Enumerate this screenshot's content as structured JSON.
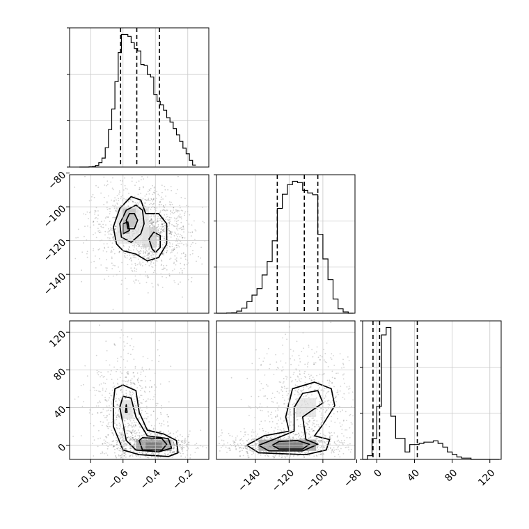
{
  "chart_data": {
    "type": "corner",
    "parameters": [
      {
        "xlim": [
          -0.93,
          -0.07
        ],
        "ticks": [
          -0.8,
          -0.6,
          -0.4,
          -0.2
        ],
        "tick_labels": [
          "−0.8",
          "−0.6",
          "−0.4",
          "−0.2"
        ]
      },
      {
        "xlim": [
          -163,
          -81
        ],
        "ticks": [
          -140,
          -120,
          -100,
          -80
        ],
        "tick_labels": [
          "−140",
          "−120",
          "−100",
          "−80"
        ]
      },
      {
        "xlim": [
          -15,
          132
        ],
        "ticks": [
          0,
          40,
          80,
          120
        ],
        "tick_labels": [
          "0",
          "40",
          "80",
          "120"
        ]
      }
    ],
    "row_tick_labels": {
      "1": {
        "ticks": [
          -80,
          -100,
          -120,
          -140
        ],
        "labels": [
          "−80",
          "−100",
          "−120",
          "−140"
        ]
      },
      "2": {
        "ticks": [
          120,
          80,
          40,
          0
        ],
        "labels": [
          "120",
          "80",
          "40",
          "0"
        ]
      }
    },
    "histograms": [
      {
        "bin_edges": [
          -0.87,
          -0.85,
          -0.83,
          -0.81,
          -0.79,
          -0.77,
          -0.75,
          -0.73,
          -0.71,
          -0.69,
          -0.67,
          -0.65,
          -0.63,
          -0.61,
          -0.59,
          -0.57,
          -0.55,
          -0.53,
          -0.51,
          -0.49,
          -0.47,
          -0.45,
          -0.43,
          -0.41,
          -0.39,
          -0.37,
          -0.35,
          -0.33,
          -0.31,
          -0.29,
          -0.27,
          -0.25,
          -0.23,
          -0.21,
          -0.19,
          -0.17,
          -0.15
        ],
        "counts": [
          0,
          0,
          0,
          1,
          2,
          7,
          18,
          37,
          80,
          155,
          240,
          353,
          473,
          548,
          548,
          540,
          514,
          490,
          480,
          424,
          420,
          383,
          372,
          300,
          272,
          257,
          235,
          204,
          186,
          159,
          133,
          106,
          78,
          55,
          28,
          8
        ],
        "quantiles": [
          -0.615,
          -0.515,
          -0.375
        ]
      },
      {
        "bin_edges": [
          -163,
          -160,
          -157,
          -154,
          -151,
          -148,
          -145,
          -142,
          -139,
          -136,
          -133,
          -130,
          -127,
          -124,
          -121,
          -118,
          -115,
          -112,
          -109,
          -106,
          -103,
          -100,
          -97,
          -94,
          -91,
          -88,
          -85,
          -82
        ],
        "counts": [
          0,
          0,
          1,
          2,
          8,
          20,
          45,
          70,
          95,
          148,
          200,
          280,
          405,
          460,
          497,
          510,
          505,
          475,
          465,
          458,
          305,
          210,
          130,
          55,
          17,
          5,
          0
        ],
        "quantiles": [
          -127,
          -111,
          -103
        ]
      },
      {
        "bin_edges": [
          -15,
          -10,
          -5,
          0,
          5,
          10,
          15,
          20,
          25,
          30,
          35,
          40,
          45,
          50,
          55,
          60,
          65,
          70,
          75,
          80,
          85,
          90,
          95,
          100,
          105,
          110,
          115,
          120,
          125,
          130
        ],
        "counts": [
          0,
          3,
          17,
          43,
          101,
          107,
          35,
          17,
          17,
          6,
          12,
          12,
          13,
          14,
          14,
          15,
          13,
          10,
          6,
          4,
          2,
          1,
          1,
          0,
          0,
          0,
          0,
          0,
          0
        ],
        "quantiles": [
          -4,
          3,
          43
        ]
      }
    ]
  }
}
